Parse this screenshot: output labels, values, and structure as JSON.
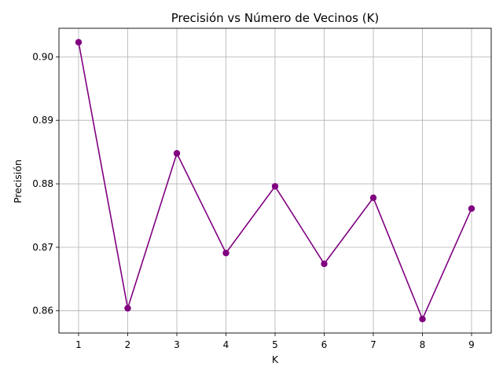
{
  "chart_data": {
    "type": "line",
    "title": "Precisión vs Número de Vecinos (K)",
    "xlabel": "K",
    "ylabel": "Precisión",
    "x": [
      1,
      2,
      3,
      4,
      5,
      6,
      7,
      8,
      9
    ],
    "series": [
      {
        "values": [
          0.9023,
          0.8604,
          0.8848,
          0.8691,
          0.8796,
          0.8674,
          0.8778,
          0.8587,
          0.8761
        ],
        "color": "#800080",
        "marker": "circle"
      }
    ],
    "xticks": [
      1,
      2,
      3,
      4,
      5,
      6,
      7,
      8,
      9
    ],
    "yticks": [
      0.86,
      0.87,
      0.88,
      0.89,
      0.9
    ],
    "ytick_labels": [
      "0.86",
      "0.87",
      "0.88",
      "0.89",
      "0.90"
    ],
    "xlim": [
      0.6,
      9.4
    ],
    "ylim": [
      0.8565,
      0.9045
    ],
    "grid": true
  }
}
